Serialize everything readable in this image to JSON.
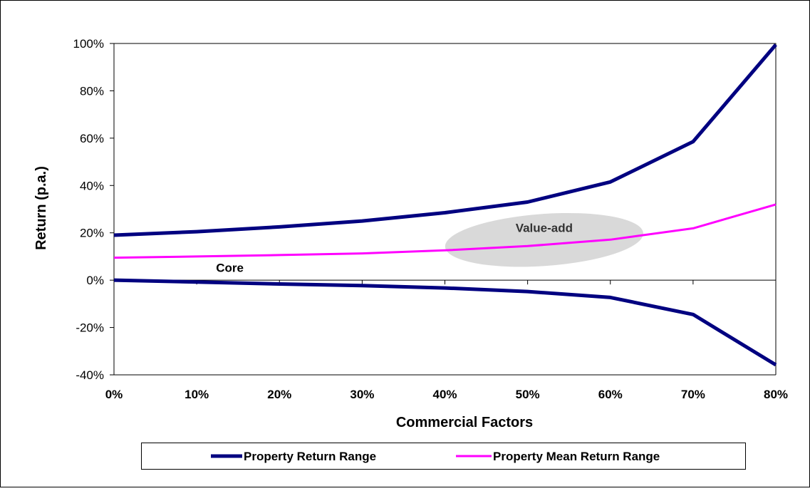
{
  "chart_data": {
    "type": "line",
    "xlabel": "Commercial  Factors",
    "ylabel": "Return (p.a.)",
    "x": [
      0,
      10,
      20,
      30,
      40,
      50,
      60,
      70,
      80
    ],
    "x_tick_labels": [
      "0%",
      "10%",
      "20%",
      "30%",
      "40%",
      "50%",
      "60%",
      "70%",
      "80%"
    ],
    "y_tick_values": [
      100,
      80,
      60,
      40,
      20,
      0,
      -20,
      -40
    ],
    "y_tick_labels": [
      "100%",
      "80%",
      "60%",
      "40%",
      "20%",
      "0%",
      "-20%",
      "-40%"
    ],
    "xlim": [
      0,
      80
    ],
    "ylim": [
      -40,
      100
    ],
    "grid": false,
    "legend_position": "bottom",
    "series": [
      {
        "name": "Property Return Range",
        "color": "#000080",
        "values": [
          19,
          20.5,
          22.5,
          25,
          28.5,
          33,
          41.5,
          58.5,
          99.5
        ]
      },
      {
        "name": "Property Return Range",
        "color": "#000080",
        "legend": false,
        "values": [
          0,
          -0.8,
          -1.6,
          -2.3,
          -3.3,
          -4.8,
          -7.3,
          -14.5,
          -35.8
        ]
      },
      {
        "name": "Property Mean Return Range",
        "color": "#ff00ff",
        "values": [
          9.5,
          10,
          10.6,
          11.3,
          12.6,
          14.4,
          17.1,
          21.9,
          32
        ]
      }
    ],
    "annotations": [
      {
        "text": "Core",
        "x": 14,
        "y": 3.5
      },
      {
        "text": "Value-add",
        "x": 52,
        "y": 20.3
      }
    ],
    "ellipse_region": {
      "label": "Value-add",
      "cx": 52,
      "cy": 17,
      "rx": 12,
      "ry": 11,
      "color": "#d9d9d9"
    }
  }
}
